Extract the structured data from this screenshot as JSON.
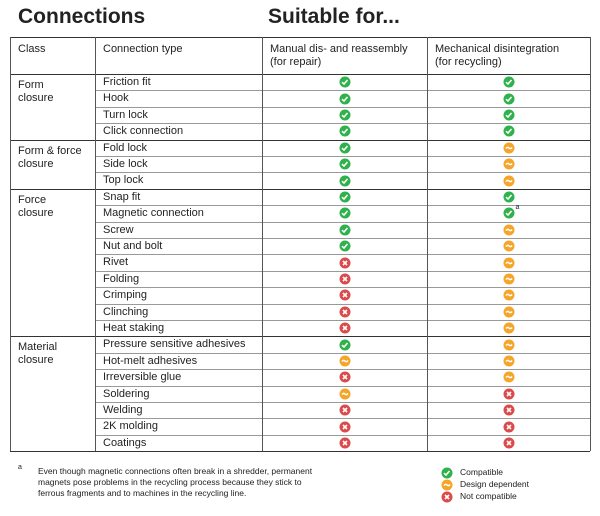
{
  "header": {
    "title": "Connections",
    "subtitle": "Suitable for..."
  },
  "table": {
    "columns": [
      [
        "Class"
      ],
      [
        "Connection type"
      ],
      [
        "Manual dis- and reassembly",
        "(for repair)"
      ],
      [
        "Mechanical disintegration",
        "(for recycling)"
      ]
    ],
    "groups": [
      {
        "class": [
          "Form",
          "closure"
        ],
        "rows": [
          "Friction fit",
          "Hook",
          "Turn lock",
          "Click connection"
        ]
      },
      {
        "class": [
          "Form & force",
          "closure"
        ],
        "rows": [
          "Fold lock",
          "Side lock",
          "Top lock"
        ]
      },
      {
        "class": [
          "Force",
          "closure"
        ],
        "rows": [
          "Snap fit",
          "Magnetic connection",
          "Screw",
          "Nut and bolt",
          "Rivet",
          "Folding",
          "Crimping",
          "Clinching",
          "Heat staking"
        ]
      },
      {
        "class": [
          "Material",
          "closure"
        ],
        "rows": [
          "Pressure sensitive adhesives",
          "Hot-melt adhesives",
          "Irreversible glue",
          "Soldering",
          "Welding",
          "2K molding",
          "Coatings"
        ]
      }
    ],
    "note_marker": "a"
  },
  "footnote": {
    "marker": "a",
    "lines": [
      "Even though magnetic connections often break in a shredder, permanent",
      "magnets pose problems in the recycling process because they stick to",
      "ferrous fragments and to machines in the recycling line."
    ]
  },
  "legend": [
    "Compatible",
    "Design dependent",
    "Not compatible"
  ]
}
